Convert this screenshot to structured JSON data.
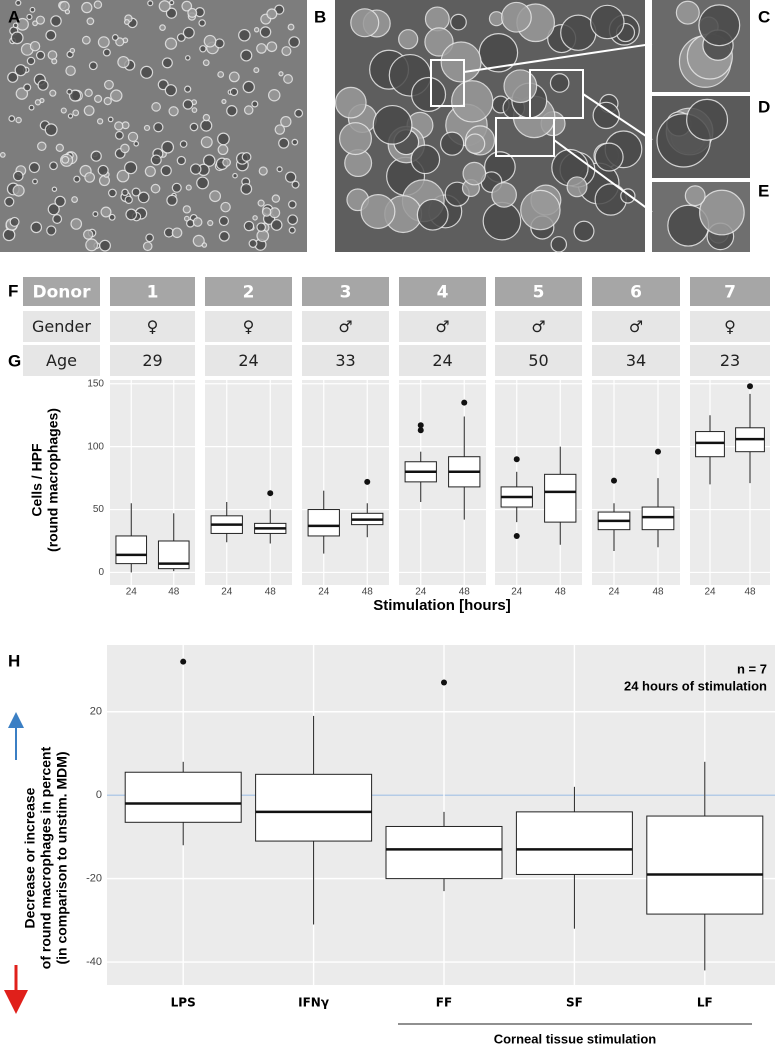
{
  "panel_labels": [
    "A",
    "B",
    "C",
    "D",
    "E",
    "F",
    "G",
    "H"
  ],
  "table": {
    "header": [
      "Donor",
      "1",
      "2",
      "3",
      "4",
      "5",
      "6",
      "7"
    ],
    "rows": [
      [
        "Gender",
        "♀",
        "♀",
        "♂",
        "♂",
        "♂",
        "♂",
        "♀"
      ],
      [
        "Age",
        "29",
        "24",
        "33",
        "24",
        "50",
        "34",
        "23"
      ]
    ]
  },
  "chart_data": [
    {
      "type": "box",
      "ylabel": [
        "Cells / HPF",
        "(round macrophages)"
      ],
      "xlabel": "Stimulation [hours]",
      "categories": [
        "24",
        "48"
      ],
      "ylim": [
        -10,
        153
      ],
      "yticks": [
        0,
        50,
        100,
        150
      ],
      "grid": true,
      "facets": [
        {
          "boxes": [
            {
              "min": 0,
              "q1": 7,
              "median": 14,
              "q3": 29,
              "max": 55,
              "outliers": []
            },
            {
              "min": 1,
              "q1": 3,
              "median": 7,
              "q3": 25,
              "max": 47,
              "outliers": []
            }
          ]
        },
        {
          "boxes": [
            {
              "min": 24,
              "q1": 31,
              "median": 38,
              "q3": 45,
              "max": 56,
              "outliers": []
            },
            {
              "min": 23,
              "q1": 31,
              "median": 35,
              "q3": 39,
              "max": 50,
              "outliers": [
                63
              ]
            }
          ]
        },
        {
          "boxes": [
            {
              "min": 15,
              "q1": 29,
              "median": 37,
              "q3": 50,
              "max": 65,
              "outliers": []
            },
            {
              "min": 28,
              "q1": 38,
              "median": 42,
              "q3": 47,
              "max": 55,
              "outliers": [
                72
              ]
            }
          ]
        },
        {
          "boxes": [
            {
              "min": 56,
              "q1": 72,
              "median": 80,
              "q3": 88,
              "max": 96,
              "outliers": [
                113,
                117
              ]
            },
            {
              "min": 42,
              "q1": 68,
              "median": 80,
              "q3": 92,
              "max": 124,
              "outliers": [
                135
              ]
            }
          ]
        },
        {
          "boxes": [
            {
              "min": 40,
              "q1": 52,
              "median": 60,
              "q3": 68,
              "max": 80,
              "outliers": [
                90,
                29
              ]
            },
            {
              "min": 22,
              "q1": 40,
              "median": 64,
              "q3": 78,
              "max": 100,
              "outliers": []
            }
          ]
        },
        {
          "boxes": [
            {
              "min": 17,
              "q1": 34,
              "median": 41,
              "q3": 48,
              "max": 55,
              "outliers": [
                73
              ]
            },
            {
              "min": 20,
              "q1": 34,
              "median": 44,
              "q3": 52,
              "max": 75,
              "outliers": [
                96
              ]
            }
          ]
        },
        {
          "boxes": [
            {
              "min": 70,
              "q1": 92,
              "median": 103,
              "q3": 112,
              "max": 125,
              "outliers": []
            },
            {
              "min": 71,
              "q1": 96,
              "median": 106,
              "q3": 115,
              "max": 142,
              "outliers": [
                148
              ]
            }
          ]
        }
      ]
    },
    {
      "type": "box",
      "ylabel": [
        "Decrease or increase",
        "of round macrophages in percent",
        "(in comparison to unstim. MDM)"
      ],
      "annotations": [
        "n = 7",
        "24 hours of stimulation"
      ],
      "group_label": "Corneal tissue stimulation",
      "categories": [
        "LPS",
        "IFNγ",
        "FF",
        "SF",
        "LF"
      ],
      "ylim": [
        -45.5,
        36
      ],
      "yticks": [
        -40,
        -20,
        0,
        20
      ],
      "grid": true,
      "boxes": [
        {
          "min": -12,
          "q1": -6.5,
          "median": -2,
          "q3": 5.5,
          "max": 8,
          "outliers": [
            32
          ]
        },
        {
          "min": -31,
          "q1": -11,
          "median": -4,
          "q3": 5,
          "max": 19,
          "outliers": []
        },
        {
          "min": -23,
          "q1": -20,
          "median": -13,
          "q3": -7.5,
          "max": -4,
          "outliers": [
            27
          ]
        },
        {
          "min": -32,
          "q1": -19,
          "median": -13,
          "q3": -4,
          "max": 2,
          "outliers": []
        },
        {
          "min": -42,
          "q1": -28.5,
          "median": -19,
          "q3": -5,
          "max": 8,
          "outliers": []
        }
      ]
    }
  ]
}
